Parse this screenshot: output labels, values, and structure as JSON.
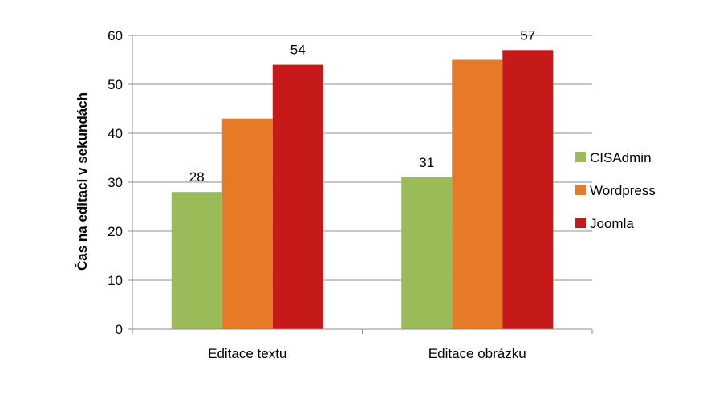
{
  "chart_data": {
    "type": "bar",
    "categories": [
      "Editace textu",
      "Editace obrázku"
    ],
    "series": [
      {
        "name": "CISAdmin",
        "values": [
          28,
          31
        ],
        "color": "#9BBB59",
        "labels": [
          "28",
          "31"
        ]
      },
      {
        "name": "Wordpress",
        "values": [
          43,
          55
        ],
        "color": "#E67A27",
        "labels": [
          "",
          ""
        ]
      },
      {
        "name": "Joomla",
        "values": [
          54,
          57
        ],
        "color": "#C61A1A",
        "labels": [
          "54",
          "57"
        ]
      }
    ],
    "title": "",
    "xlabel": "",
    "ylabel": "Čas na editaci v sekundách",
    "ylim": [
      0,
      60
    ],
    "yticks": [
      0,
      10,
      20,
      30,
      40,
      50,
      60
    ],
    "grid": true,
    "legend_position": "right"
  }
}
